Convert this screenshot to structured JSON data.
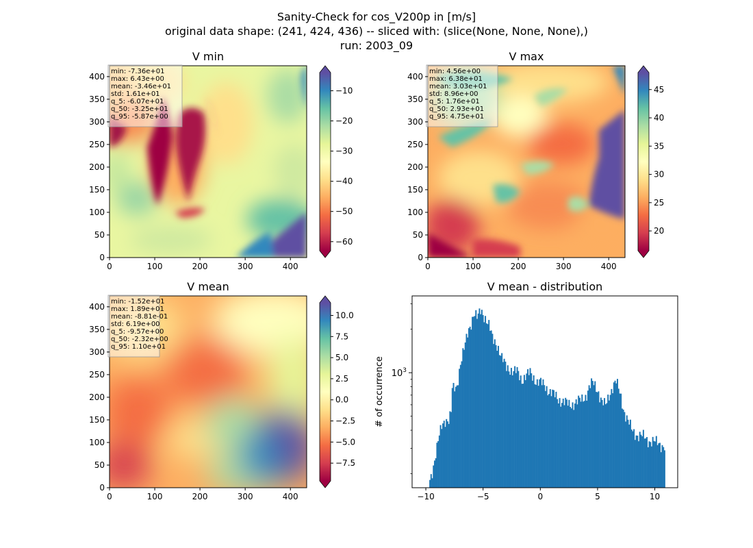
{
  "figure": {
    "title_lines": [
      "Sanity-Check for cos_V200p in [m/s]",
      "original data shape: (241, 424, 436) -- sliced with: (slice(None, None, None),)",
      "run: 2003_09"
    ]
  },
  "chart_data": [
    {
      "type": "heatmap",
      "id": "vmin",
      "title": "V min",
      "xlim": [
        0,
        436
      ],
      "ylim": [
        0,
        424
      ],
      "xticks": [
        0,
        100,
        200,
        300,
        400
      ],
      "yticks": [
        0,
        50,
        100,
        150,
        200,
        250,
        300,
        350,
        400
      ],
      "colormap": "Spectral",
      "colorbar": {
        "vmin": -63,
        "vmax": -4,
        "ticks": [
          -60,
          -50,
          -40,
          -30,
          -20,
          -10
        ],
        "extend": "both"
      },
      "stats": [
        "min: -7.36e+01",
        "max: 6.43e+00",
        "mean: -3.46e+01",
        "std: 1.61e+01",
        "q_5: -6.07e+01",
        "q_50: -3.25e+01",
        "q_95: -5.87e+00"
      ]
    },
    {
      "type": "heatmap",
      "id": "vmax",
      "title": "V max",
      "xlim": [
        0,
        436
      ],
      "ylim": [
        0,
        424
      ],
      "xticks": [
        0,
        100,
        200,
        300,
        400
      ],
      "yticks": [
        0,
        50,
        100,
        150,
        200,
        250,
        300,
        350,
        400
      ],
      "colormap": "Spectral",
      "colorbar": {
        "vmin": 16.5,
        "vmax": 48,
        "ticks": [
          20,
          25,
          30,
          35,
          40,
          45
        ],
        "extend": "both"
      },
      "stats": [
        "min: 4.56e+00",
        "max: 6.38e+01",
        "mean: 3.03e+01",
        "std: 8.96e+00",
        "q_5: 1.76e+01",
        "q_50: 2.93e+01",
        "q_95: 4.75e+01"
      ]
    },
    {
      "type": "heatmap",
      "id": "vmean",
      "title": "V mean",
      "xlim": [
        0,
        436
      ],
      "ylim": [
        0,
        424
      ],
      "xticks": [
        0,
        100,
        200,
        300,
        400
      ],
      "yticks": [
        0,
        50,
        100,
        150,
        200,
        250,
        300,
        350,
        400
      ],
      "colormap": "Spectral",
      "colorbar": {
        "vmin": -9.6,
        "vmax": 11.5,
        "ticks": [
          -7.5,
          -5.0,
          -2.5,
          0.0,
          2.5,
          5.0,
          7.5,
          10.0
        ],
        "tick_labels": [
          "−7.5",
          "−5.0",
          "−2.5",
          "0.0",
          "2.5",
          "5.0",
          "7.5",
          "10.0"
        ],
        "extend": "both"
      },
      "stats": [
        "min: -1.52e+01",
        "max: 1.89e+01",
        "mean: -8.81e-01",
        "std: 6.19e+00",
        "q_5: -9.57e+00",
        "q_50: -2.32e+00",
        "q_95: 1.10e+01"
      ]
    },
    {
      "type": "bar",
      "id": "hist",
      "title": "V mean - distribution",
      "ylabel": "# of occurrence",
      "yscale": "log",
      "xlim": [
        -11.2,
        12.0
      ],
      "ylim": [
        160,
        3400
      ],
      "xticks": [
        -10,
        -5,
        0,
        5,
        10
      ],
      "xtick_labels": [
        "−10",
        "−5",
        "0",
        "5",
        "10"
      ],
      "ytick_labels": [
        {
          "value": 1000,
          "base": "10",
          "exp": "3"
        }
      ],
      "bar_color": "#1f77b4",
      "profile_points": [
        [
          -9.7,
          175
        ],
        [
          -9.5,
          200
        ],
        [
          -9.2,
          260
        ],
        [
          -8.9,
          340
        ],
        [
          -8.6,
          430
        ],
        [
          -8.3,
          480
        ],
        [
          -8.0,
          470
        ],
        [
          -7.8,
          520
        ],
        [
          -7.7,
          760
        ],
        [
          -7.3,
          800
        ],
        [
          -7.0,
          1150
        ],
        [
          -6.6,
          1500
        ],
        [
          -6.3,
          1950
        ],
        [
          -6.0,
          2300
        ],
        [
          -5.8,
          2600
        ],
        [
          -5.5,
          2350
        ],
        [
          -5.2,
          2750
        ],
        [
          -4.9,
          2500
        ],
        [
          -4.5,
          2100
        ],
        [
          -4.2,
          1750
        ],
        [
          -3.8,
          1600
        ],
        [
          -3.4,
          1250
        ],
        [
          -3.0,
          1120
        ],
        [
          -2.7,
          1080
        ],
        [
          -2.4,
          1000
        ],
        [
          -2.0,
          1020
        ],
        [
          -1.6,
          900
        ],
        [
          -1.2,
          950
        ],
        [
          -0.9,
          1000
        ],
        [
          -0.6,
          940
        ],
        [
          -0.3,
          860
        ],
        [
          0.0,
          850
        ],
        [
          0.4,
          820
        ],
        [
          0.8,
          740
        ],
        [
          1.2,
          700
        ],
        [
          1.6,
          660
        ],
        [
          2.0,
          630
        ],
        [
          2.5,
          600
        ],
        [
          3.0,
          620
        ],
        [
          3.5,
          640
        ],
        [
          4.0,
          700
        ],
        [
          4.3,
          800
        ],
        [
          4.6,
          850
        ],
        [
          5.0,
          770
        ],
        [
          5.4,
          620
        ],
        [
          5.7,
          590
        ],
        [
          6.0,
          700
        ],
        [
          6.3,
          800
        ],
        [
          6.6,
          870
        ],
        [
          7.0,
          700
        ],
        [
          7.3,
          550
        ],
        [
          7.6,
          470
        ],
        [
          8.0,
          400
        ],
        [
          8.5,
          370
        ],
        [
          9.0,
          360
        ],
        [
          9.5,
          340
        ],
        [
          10.0,
          330
        ],
        [
          10.5,
          320
        ],
        [
          10.9,
          310
        ]
      ]
    }
  ]
}
